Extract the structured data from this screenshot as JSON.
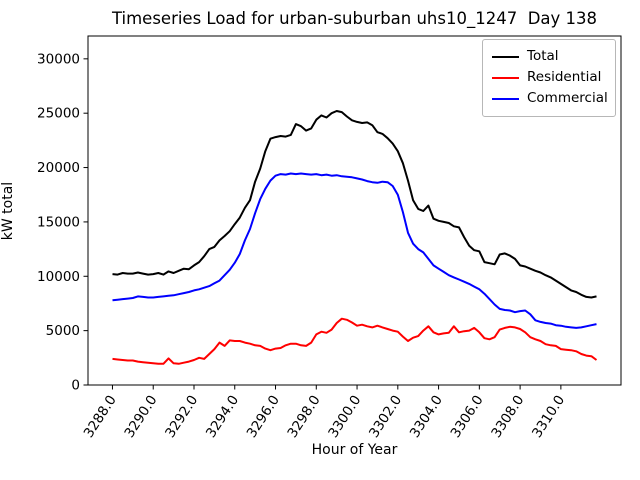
{
  "chart_data": {
    "type": "line",
    "title": "Timeseries Load for urban-suburban uhs10_1247  Day 138",
    "xlabel": "Hour of Year",
    "ylabel": "kW total",
    "xlim": [
      3286.8,
      3312.95
    ],
    "ylim": [
      0,
      32100
    ],
    "grid": false,
    "legend_position": "upper right",
    "x_ticks": [
      3288,
      3290,
      3292,
      3294,
      3296,
      3298,
      3300,
      3302,
      3304,
      3306,
      3308,
      3310
    ],
    "x_tick_labels": [
      "3288.0",
      "3290.0",
      "3292.0",
      "3294.0",
      "3296.0",
      "3298.0",
      "3300.0",
      "3302.0",
      "3304.0",
      "3306.0",
      "3308.0",
      "3310.0"
    ],
    "y_ticks": [
      0,
      5000,
      10000,
      15000,
      20000,
      25000,
      30000
    ],
    "y_tick_labels": [
      "0",
      "5000",
      "10000",
      "15000",
      "20000",
      "25000",
      "30000"
    ],
    "x": [
      3288.0,
      3288.25,
      3288.5,
      3288.75,
      3289.0,
      3289.25,
      3289.5,
      3289.75,
      3290.0,
      3290.25,
      3290.5,
      3290.75,
      3291.0,
      3291.25,
      3291.5,
      3291.75,
      3292.0,
      3292.25,
      3292.5,
      3292.75,
      3293.0,
      3293.25,
      3293.5,
      3293.75,
      3294.0,
      3294.25,
      3294.5,
      3294.75,
      3295.0,
      3295.25,
      3295.5,
      3295.75,
      3296.0,
      3296.25,
      3296.5,
      3296.75,
      3297.0,
      3297.25,
      3297.5,
      3297.75,
      3298.0,
      3298.25,
      3298.5,
      3298.75,
      3299.0,
      3299.25,
      3299.5,
      3299.75,
      3300.0,
      3300.25,
      3300.5,
      3300.75,
      3301.0,
      3301.25,
      3301.5,
      3301.75,
      3302.0,
      3302.25,
      3302.5,
      3302.75,
      3303.0,
      3303.25,
      3303.5,
      3303.75,
      3304.0,
      3304.25,
      3304.5,
      3304.75,
      3305.0,
      3305.25,
      3305.5,
      3305.75,
      3306.0,
      3306.25,
      3306.5,
      3306.75,
      3307.0,
      3307.25,
      3307.5,
      3307.75,
      3308.0,
      3308.25,
      3308.5,
      3308.75,
      3309.0,
      3309.25,
      3309.5,
      3309.75,
      3310.0,
      3310.25,
      3310.5,
      3310.75,
      3311.0,
      3311.25,
      3311.5,
      3311.75
    ],
    "series": [
      {
        "name": "Total",
        "color": "#000000",
        "values": [
          10200,
          10150,
          10300,
          10250,
          10250,
          10350,
          10250,
          10150,
          10200,
          10300,
          10150,
          10450,
          10300,
          10500,
          10700,
          10650,
          11000,
          11300,
          11850,
          12500,
          12700,
          13300,
          13700,
          14150,
          14800,
          15400,
          16300,
          17000,
          18700,
          19900,
          21500,
          22650,
          22800,
          22900,
          22850,
          23000,
          24000,
          23800,
          23400,
          23600,
          24400,
          24800,
          24600,
          25000,
          25200,
          25100,
          24700,
          24350,
          24200,
          24100,
          24150,
          23900,
          23250,
          23100,
          22700,
          22200,
          21500,
          20400,
          18800,
          17000,
          16200,
          16000,
          16500,
          15300,
          15100,
          15000,
          14900,
          14600,
          14500,
          13600,
          12800,
          12400,
          12300,
          11300,
          11200,
          11100,
          12000,
          12100,
          11900,
          11600,
          11000,
          10900,
          10700,
          10500,
          10350,
          10100,
          9900,
          9600,
          9300,
          9000,
          8700,
          8550,
          8300,
          8100,
          8050,
          8150
        ]
      },
      {
        "name": "Residential",
        "color": "#ff0000",
        "values": [
          2400,
          2350,
          2300,
          2250,
          2250,
          2150,
          2100,
          2050,
          2000,
          1950,
          1950,
          2450,
          2000,
          1950,
          2050,
          2150,
          2300,
          2500,
          2400,
          2850,
          3300,
          3900,
          3600,
          4100,
          4050,
          4050,
          3900,
          3800,
          3650,
          3600,
          3350,
          3200,
          3350,
          3400,
          3650,
          3800,
          3800,
          3650,
          3600,
          3900,
          4650,
          4900,
          4800,
          5100,
          5700,
          6100,
          6000,
          5750,
          5450,
          5550,
          5400,
          5300,
          5450,
          5300,
          5150,
          5000,
          4900,
          4450,
          4050,
          4350,
          4500,
          5000,
          5400,
          4850,
          4650,
          4750,
          4800,
          5400,
          4850,
          4950,
          5000,
          5250,
          4850,
          4300,
          4200,
          4400,
          5100,
          5250,
          5350,
          5300,
          5150,
          4850,
          4400,
          4200,
          4050,
          3750,
          3650,
          3600,
          3300,
          3250,
          3200,
          3100,
          2850,
          2700,
          2650,
          2300
        ]
      },
      {
        "name": "Commercial",
        "color": "#0000ff",
        "values": [
          7800,
          7850,
          7900,
          7950,
          8000,
          8150,
          8100,
          8050,
          8050,
          8100,
          8150,
          8200,
          8250,
          8350,
          8450,
          8550,
          8700,
          8800,
          8950,
          9100,
          9350,
          9600,
          10100,
          10600,
          11250,
          12050,
          13300,
          14350,
          15800,
          17100,
          18050,
          18800,
          19250,
          19400,
          19350,
          19450,
          19400,
          19450,
          19400,
          19350,
          19400,
          19300,
          19350,
          19250,
          19300,
          19200,
          19150,
          19100,
          19000,
          18900,
          18750,
          18650,
          18600,
          18700,
          18650,
          18300,
          17500,
          15900,
          14000,
          13000,
          12500,
          12200,
          11600,
          11000,
          10700,
          10400,
          10100,
          9900,
          9700,
          9500,
          9300,
          9050,
          8800,
          8400,
          7900,
          7400,
          7000,
          6900,
          6850,
          6700,
          6800,
          6850,
          6500,
          5950,
          5800,
          5700,
          5650,
          5500,
          5450,
          5350,
          5300,
          5250,
          5300,
          5400,
          5500,
          5600
        ]
      }
    ]
  }
}
